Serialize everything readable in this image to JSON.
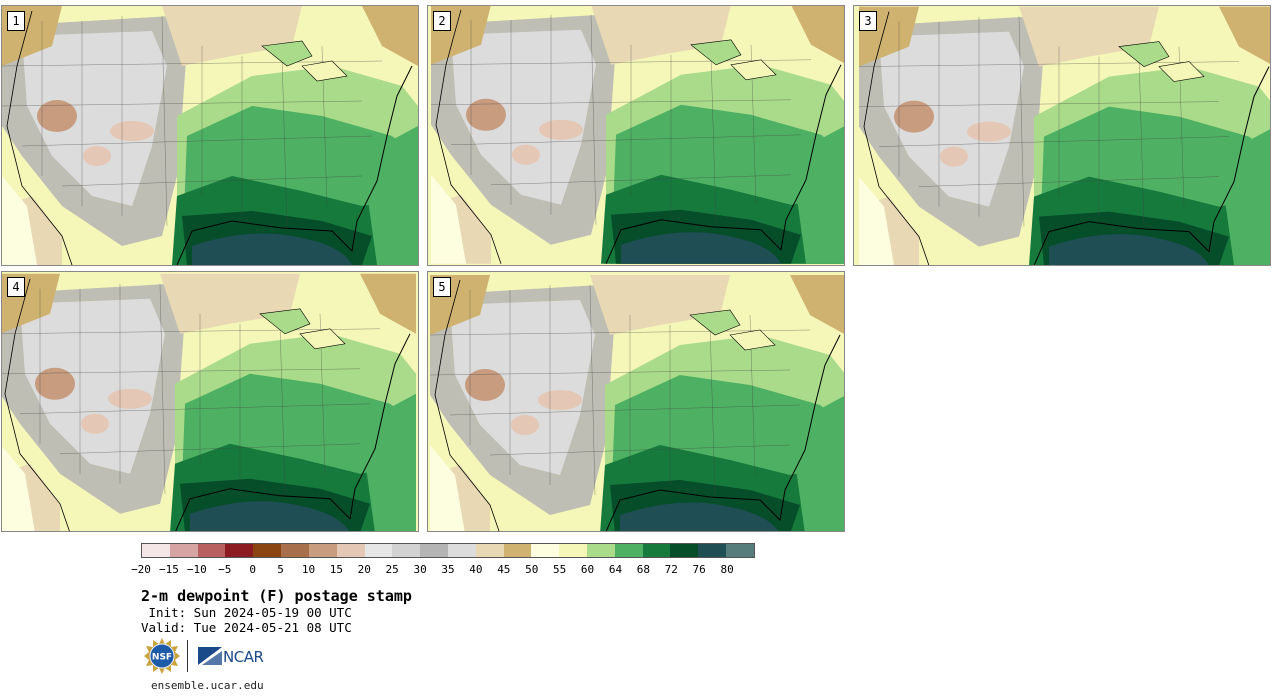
{
  "panels": [
    {
      "label": "1"
    },
    {
      "label": "2"
    },
    {
      "label": "3"
    },
    {
      "label": "4"
    },
    {
      "label": "5"
    }
  ],
  "colorbar": {
    "colors": [
      "#f4e6e6",
      "#d7a4a4",
      "#b86060",
      "#8c1c22",
      "#8b4513",
      "#a86f4c",
      "#c79c7f",
      "#e4c7b4",
      "#e6e6e6",
      "#d2d2d2",
      "#b4b4b4",
      "#dcdcdc",
      "#e8d9b4",
      "#cfb26f",
      "#fdfde0",
      "#f4f7b8",
      "#a9db8a",
      "#4eb062",
      "#157a3c",
      "#064d2a",
      "#1f4f55",
      "#567c7c"
    ],
    "tick_labels": [
      "−20",
      "−15",
      "−10",
      "−5",
      "0",
      "5",
      "10",
      "15",
      "20",
      "25",
      "30",
      "35",
      "40",
      "45",
      "50",
      "55",
      "60",
      "64",
      "68",
      "72",
      "76",
      "80"
    ]
  },
  "title": "2-m dewpoint (F) postage stamp",
  "init": " Init: Sun 2024-05-19 00 UTC",
  "valid": "Valid: Tue 2024-05-21 08 UTC",
  "logos": {
    "nsf": "NSF",
    "ncar": "NCAR"
  },
  "website": "ensemble.ucar.edu"
}
